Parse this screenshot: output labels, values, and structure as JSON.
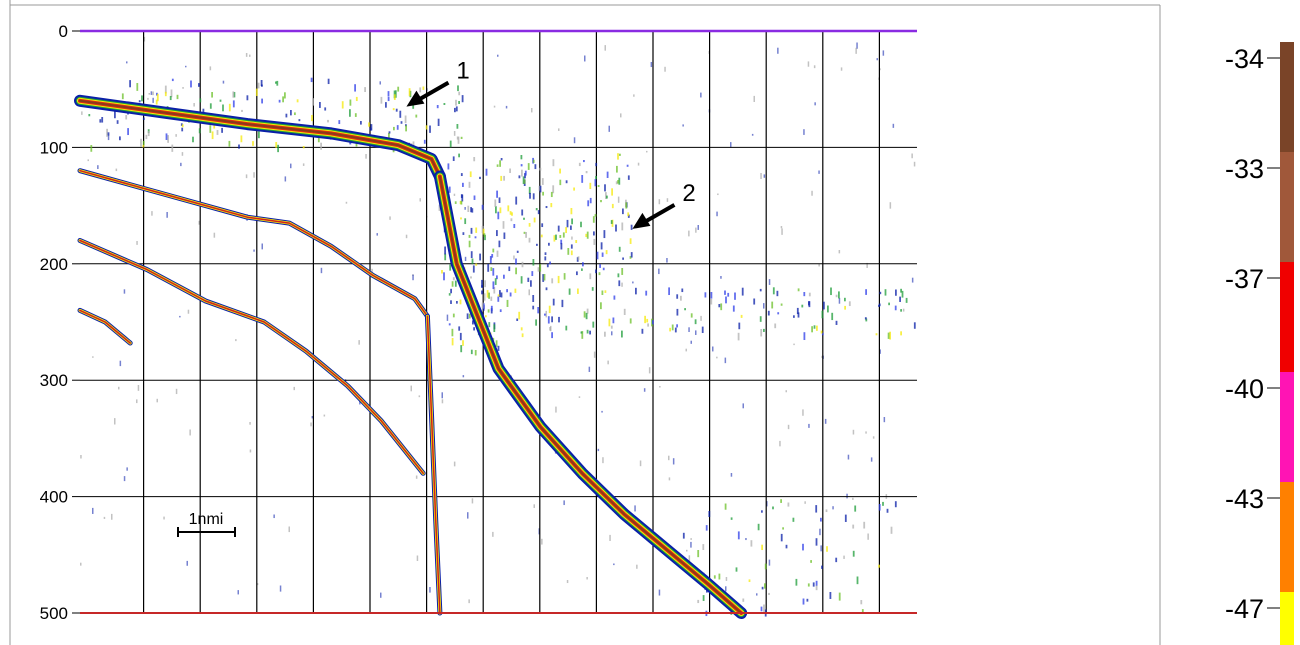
{
  "chart_data": [
    {
      "type": "echogram",
      "xlabel": "",
      "ylabel": "",
      "ylim": [
        0,
        500
      ],
      "yticks": [
        "0",
        "100",
        "200",
        "300",
        "400",
        "500"
      ],
      "grid": true,
      "scale_bar": {
        "label": "1nmi"
      },
      "annotations": [
        {
          "label": "1",
          "x_frac": 0.39,
          "y": 65
        },
        {
          "label": "2",
          "x_frac": 0.66,
          "y": 170
        }
      ],
      "series": [
        {
          "name": "",
          "x_frac": [
            0,
            0.1,
            0.2,
            0.3,
            0.38,
            0.42,
            0.43
          ],
          "y": [
            60,
            70,
            80,
            88,
            98,
            110,
            125
          ]
        },
        {
          "name": "",
          "x_frac": [
            0.43,
            0.45,
            0.5,
            0.55,
            0.6,
            0.65,
            0.7,
            0.75,
            0.79
          ],
          "y": [
            125,
            200,
            290,
            340,
            380,
            415,
            445,
            475,
            500
          ]
        },
        {
          "name": "",
          "x_frac": [
            0,
            0.1,
            0.2,
            0.25,
            0.3,
            0.35,
            0.4,
            0.415
          ],
          "y": [
            120,
            140,
            160,
            165,
            185,
            210,
            230,
            245
          ]
        },
        {
          "name": "",
          "x_frac": [
            0,
            0.08,
            0.15,
            0.22,
            0.27,
            0.32,
            0.36,
            0.41
          ],
          "y": [
            180,
            205,
            232,
            250,
            275,
            305,
            335,
            380
          ]
        },
        {
          "name": "",
          "x_frac": [
            0.0,
            0.03,
            0.06
          ],
          "y": [
            240,
            250,
            268
          ]
        },
        {
          "name": "",
          "x_frac": [
            0.415,
            0.42,
            0.425,
            0.43
          ],
          "y": [
            245,
            330,
            420,
            500
          ]
        }
      ]
    },
    {
      "type": "colorbar",
      "ticks": [
        "-34",
        "-33",
        "-37",
        "-40",
        "-43",
        "-47"
      ],
      "colors": [
        "#7a4428",
        "#a0583a",
        "#f00000",
        "#ff14b4",
        "#ff8000",
        "#ffff00"
      ]
    }
  ]
}
